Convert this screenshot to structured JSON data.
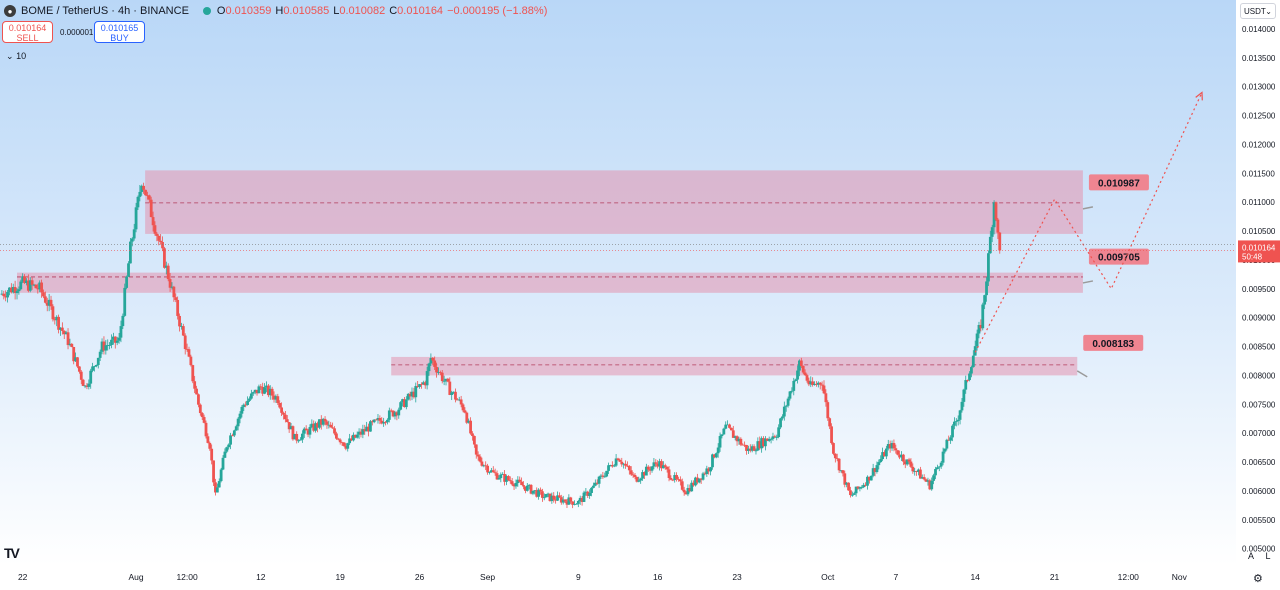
{
  "header": {
    "symbol": "BOME / TetherUS · 4h · BINANCE",
    "o_label": "O",
    "o": "0.010359",
    "h_label": "H",
    "h": "0.010585",
    "l_label": "L",
    "l": "0.010082",
    "c_label": "C",
    "c": "0.010164",
    "change": "−0.000195 (−1.88%)"
  },
  "trade": {
    "sell_price": "0.010164",
    "sell_label": "SELL",
    "spread": "0.000001",
    "buy_price": "0.010165",
    "buy_label": "BUY"
  },
  "indicators_toggle": "10",
  "currency": "USDT",
  "last_price": {
    "value": "0.010164",
    "countdown": "50:48"
  },
  "corner": {
    "auto": "A",
    "log": "L"
  },
  "colors": {
    "up": "#26a69a",
    "down": "#ef5350",
    "zone": "#e394ae",
    "label": "#ef8591"
  },
  "chart_data": {
    "type": "candlestick",
    "title": "BOME / TetherUS · 4h · BINANCE",
    "ylim": [
      0.0047,
      0.0145
    ],
    "y_ticks": [
      0.005,
      0.0055,
      0.006,
      0.0065,
      0.007,
      0.0075,
      0.008,
      0.0085,
      0.009,
      0.0095,
      0.01,
      0.0105,
      0.011,
      0.0115,
      0.012,
      0.0125,
      0.013,
      0.0135,
      0.014
    ],
    "y_tick_labels": [
      "0.005000",
      "0.005500",
      "0.006000",
      "0.006500",
      "0.007000",
      "0.007500",
      "0.008000",
      "0.008500",
      "0.009000",
      "0.009500",
      "0.010000",
      "0.010500",
      "0.011000",
      "0.011500",
      "0.012000",
      "0.012500",
      "0.013000",
      "0.013500",
      "0.014000"
    ],
    "x_labels": [
      "22",
      "Aug",
      "12:00",
      "12",
      "19",
      "26",
      "Sep",
      "9",
      "16",
      "23",
      "Oct",
      "7",
      "14",
      "21",
      "12:00",
      "Nov"
    ],
    "x_label_days": [
      22,
      32,
      36.5,
      43,
      50,
      57,
      63,
      71,
      78,
      85,
      93,
      99,
      106,
      113,
      119.5,
      124
    ],
    "x_range_days": [
      20,
      129
    ],
    "grid": false,
    "zones": [
      {
        "start_day": 32.8,
        "end_day": 115.5,
        "low": 0.01045,
        "high": 0.01155,
        "mid": 0.010987,
        "label": "0.010987"
      },
      {
        "start_day": 21.5,
        "end_day": 115.5,
        "low": 0.00943,
        "high": 0.00978,
        "mid": 0.009705,
        "label": "0.009705"
      },
      {
        "start_day": 54.5,
        "end_day": 115,
        "low": 0.008,
        "high": 0.00832,
        "mid": 0.008183,
        "label": "0.008183"
      }
    ],
    "projection": [
      {
        "day": 106,
        "price": 0.0084
      },
      {
        "day": 113,
        "price": 0.01105
      },
      {
        "day": 118,
        "price": 0.0095
      },
      {
        "day": 126,
        "price": 0.0129
      }
    ],
    "price_anchors": [
      {
        "day": 20,
        "price": 0.0094
      },
      {
        "day": 22,
        "price": 0.0096
      },
      {
        "day": 23.5,
        "price": 0.0095
      },
      {
        "day": 26,
        "price": 0.0086
      },
      {
        "day": 27.5,
        "price": 0.0078
      },
      {
        "day": 29,
        "price": 0.0085
      },
      {
        "day": 30.5,
        "price": 0.0086
      },
      {
        "day": 31.5,
        "price": 0.0102
      },
      {
        "day": 32.5,
        "price": 0.0114
      },
      {
        "day": 33.5,
        "price": 0.0107
      },
      {
        "day": 35,
        "price": 0.0096
      },
      {
        "day": 36.5,
        "price": 0.0084
      },
      {
        "day": 37.5,
        "price": 0.0075
      },
      {
        "day": 38.5,
        "price": 0.0068
      },
      {
        "day": 39,
        "price": 0.0059
      },
      {
        "day": 40,
        "price": 0.0068
      },
      {
        "day": 41.5,
        "price": 0.0075
      },
      {
        "day": 43,
        "price": 0.0078
      },
      {
        "day": 44.5,
        "price": 0.0076
      },
      {
        "day": 46,
        "price": 0.0069
      },
      {
        "day": 48.5,
        "price": 0.0072
      },
      {
        "day": 50.5,
        "price": 0.0068
      },
      {
        "day": 52.5,
        "price": 0.0071
      },
      {
        "day": 55,
        "price": 0.0074
      },
      {
        "day": 57.5,
        "price": 0.0079
      },
      {
        "day": 58,
        "price": 0.0083
      },
      {
        "day": 59.5,
        "price": 0.0078
      },
      {
        "day": 61,
        "price": 0.0074
      },
      {
        "day": 62,
        "price": 0.0066
      },
      {
        "day": 63.5,
        "price": 0.0063
      },
      {
        "day": 66,
        "price": 0.0061
      },
      {
        "day": 68,
        "price": 0.0059
      },
      {
        "day": 71,
        "price": 0.0058
      },
      {
        "day": 72.5,
        "price": 0.0061
      },
      {
        "day": 74.5,
        "price": 0.0066
      },
      {
        "day": 76,
        "price": 0.0062
      },
      {
        "day": 78,
        "price": 0.0065
      },
      {
        "day": 80.5,
        "price": 0.006
      },
      {
        "day": 82.5,
        "price": 0.0064
      },
      {
        "day": 84,
        "price": 0.0071
      },
      {
        "day": 86,
        "price": 0.0067
      },
      {
        "day": 88.5,
        "price": 0.007
      },
      {
        "day": 90.5,
        "price": 0.0082
      },
      {
        "day": 91.5,
        "price": 0.0078
      },
      {
        "day": 92.5,
        "price": 0.0079
      },
      {
        "day": 93.5,
        "price": 0.0067
      },
      {
        "day": 95,
        "price": 0.0059
      },
      {
        "day": 96.5,
        "price": 0.0062
      },
      {
        "day": 98.5,
        "price": 0.0068
      },
      {
        "day": 100.5,
        "price": 0.0064
      },
      {
        "day": 102,
        "price": 0.0061
      },
      {
        "day": 103.5,
        "price": 0.0068
      },
      {
        "day": 104.5,
        "price": 0.0073
      },
      {
        "day": 105.5,
        "price": 0.0081
      },
      {
        "day": 106.5,
        "price": 0.0089
      },
      {
        "day": 107,
        "price": 0.0097
      },
      {
        "day": 107.7,
        "price": 0.0111
      },
      {
        "day": 108,
        "price": 0.0104
      },
      {
        "day": 108.2,
        "price": 0.0102
      }
    ]
  }
}
